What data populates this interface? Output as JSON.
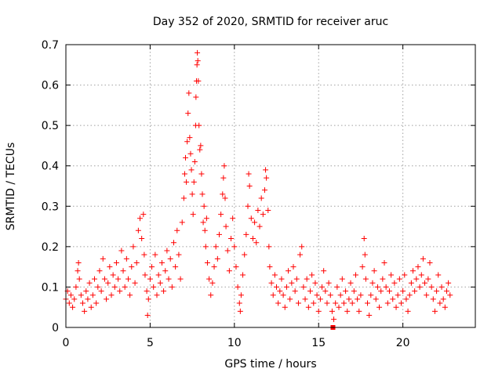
{
  "chart_data": {
    "type": "scatter",
    "title": "Day 352 of 2020, SRMTID for receiver aruc",
    "xlabel": "GPS time / hours",
    "ylabel": "SRMTID / TECUs",
    "xlim": [
      0,
      24.3
    ],
    "ylim": [
      0,
      0.7
    ],
    "x_ticks": [
      0,
      5,
      10,
      15,
      20
    ],
    "x_tick_labels": [
      "0",
      "5",
      "10",
      "15",
      "20"
    ],
    "y_ticks": [
      0,
      0.1,
      0.2,
      0.3,
      0.4,
      0.5,
      0.6,
      0.7
    ],
    "y_tick_labels": [
      "0",
      "0.1",
      "0.2",
      "0.3",
      "0.4",
      "0.5",
      "0.6",
      "0.7"
    ],
    "grid": true,
    "marker": "plus",
    "color": "#ff0000",
    "series": [
      {
        "name": "SRMTID",
        "points": [
          [
            0.0,
            0.07
          ],
          [
            0.1,
            0.09
          ],
          [
            0.2,
            0.06
          ],
          [
            0.3,
            0.08
          ],
          [
            0.4,
            0.05
          ],
          [
            0.5,
            0.07
          ],
          [
            0.6,
            0.1
          ],
          [
            0.7,
            0.14
          ],
          [
            0.75,
            0.16
          ],
          [
            0.8,
            0.12
          ],
          [
            0.9,
            0.08
          ],
          [
            1.0,
            0.06
          ],
          [
            1.1,
            0.04
          ],
          [
            1.2,
            0.09
          ],
          [
            1.3,
            0.07
          ],
          [
            1.4,
            0.11
          ],
          [
            1.5,
            0.05
          ],
          [
            1.6,
            0.08
          ],
          [
            1.7,
            0.12
          ],
          [
            1.8,
            0.06
          ],
          [
            1.9,
            0.1
          ],
          [
            2.0,
            0.14
          ],
          [
            2.1,
            0.09
          ],
          [
            2.2,
            0.17
          ],
          [
            2.3,
            0.12
          ],
          [
            2.4,
            0.07
          ],
          [
            2.5,
            0.11
          ],
          [
            2.6,
            0.15
          ],
          [
            2.7,
            0.08
          ],
          [
            2.8,
            0.13
          ],
          [
            2.9,
            0.1
          ],
          [
            3.0,
            0.16
          ],
          [
            3.1,
            0.12
          ],
          [
            3.2,
            0.09
          ],
          [
            3.3,
            0.19
          ],
          [
            3.4,
            0.14
          ],
          [
            3.5,
            0.1
          ],
          [
            3.6,
            0.17
          ],
          [
            3.7,
            0.12
          ],
          [
            3.8,
            0.08
          ],
          [
            3.9,
            0.15
          ],
          [
            4.0,
            0.2
          ],
          [
            4.1,
            0.11
          ],
          [
            4.2,
            0.16
          ],
          [
            4.3,
            0.24
          ],
          [
            4.4,
            0.27
          ],
          [
            4.5,
            0.22
          ],
          [
            4.6,
            0.28
          ],
          [
            4.65,
            0.18
          ],
          [
            4.7,
            0.13
          ],
          [
            4.8,
            0.09
          ],
          [
            4.85,
            0.03
          ],
          [
            4.9,
            0.07
          ],
          [
            5.0,
            0.12
          ],
          [
            5.1,
            0.15
          ],
          [
            5.2,
            0.1
          ],
          [
            5.3,
            0.18
          ],
          [
            5.4,
            0.08
          ],
          [
            5.5,
            0.13
          ],
          [
            5.6,
            0.11
          ],
          [
            5.7,
            0.16
          ],
          [
            5.8,
            0.09
          ],
          [
            5.9,
            0.14
          ],
          [
            6.0,
            0.19
          ],
          [
            6.1,
            0.12
          ],
          [
            6.2,
            0.17
          ],
          [
            6.3,
            0.1
          ],
          [
            6.4,
            0.21
          ],
          [
            6.5,
            0.15
          ],
          [
            6.6,
            0.24
          ],
          [
            6.7,
            0.18
          ],
          [
            6.8,
            0.12
          ],
          [
            6.9,
            0.26
          ],
          [
            7.0,
            0.32
          ],
          [
            7.05,
            0.38
          ],
          [
            7.1,
            0.42
          ],
          [
            7.15,
            0.36
          ],
          [
            7.2,
            0.46
          ],
          [
            7.25,
            0.53
          ],
          [
            7.3,
            0.58
          ],
          [
            7.35,
            0.47
          ],
          [
            7.4,
            0.43
          ],
          [
            7.45,
            0.39
          ],
          [
            7.5,
            0.33
          ],
          [
            7.55,
            0.28
          ],
          [
            7.6,
            0.36
          ],
          [
            7.65,
            0.41
          ],
          [
            7.7,
            0.5
          ],
          [
            7.72,
            0.57
          ],
          [
            7.75,
            0.61
          ],
          [
            7.78,
            0.65
          ],
          [
            7.8,
            0.68
          ],
          [
            7.83,
            0.66
          ],
          [
            7.86,
            0.61
          ],
          [
            7.9,
            0.5
          ],
          [
            7.95,
            0.44
          ],
          [
            8.0,
            0.45
          ],
          [
            8.05,
            0.38
          ],
          [
            8.1,
            0.33
          ],
          [
            8.15,
            0.26
          ],
          [
            8.2,
            0.3
          ],
          [
            8.25,
            0.24
          ],
          [
            8.3,
            0.2
          ],
          [
            8.35,
            0.27
          ],
          [
            8.4,
            0.16
          ],
          [
            8.5,
            0.12
          ],
          [
            8.6,
            0.08
          ],
          [
            8.7,
            0.11
          ],
          [
            8.8,
            0.15
          ],
          [
            8.9,
            0.2
          ],
          [
            9.0,
            0.17
          ],
          [
            9.1,
            0.23
          ],
          [
            9.2,
            0.28
          ],
          [
            9.3,
            0.33
          ],
          [
            9.35,
            0.37
          ],
          [
            9.4,
            0.4
          ],
          [
            9.45,
            0.32
          ],
          [
            9.5,
            0.25
          ],
          [
            9.6,
            0.19
          ],
          [
            9.7,
            0.14
          ],
          [
            9.8,
            0.22
          ],
          [
            9.9,
            0.27
          ],
          [
            10.0,
            0.2
          ],
          [
            10.1,
            0.15
          ],
          [
            10.2,
            0.1
          ],
          [
            10.3,
            0.06
          ],
          [
            10.35,
            0.04
          ],
          [
            10.4,
            0.08
          ],
          [
            10.5,
            0.13
          ],
          [
            10.6,
            0.18
          ],
          [
            10.7,
            0.23
          ],
          [
            10.8,
            0.3
          ],
          [
            10.85,
            0.38
          ],
          [
            10.9,
            0.35
          ],
          [
            11.0,
            0.27
          ],
          [
            11.1,
            0.22
          ],
          [
            11.2,
            0.26
          ],
          [
            11.3,
            0.21
          ],
          [
            11.4,
            0.29
          ],
          [
            11.5,
            0.25
          ],
          [
            11.6,
            0.32
          ],
          [
            11.7,
            0.28
          ],
          [
            11.8,
            0.34
          ],
          [
            11.85,
            0.39
          ],
          [
            11.9,
            0.37
          ],
          [
            12.0,
            0.29
          ],
          [
            12.05,
            0.2
          ],
          [
            12.1,
            0.15
          ],
          [
            12.2,
            0.11
          ],
          [
            12.3,
            0.08
          ],
          [
            12.4,
            0.13
          ],
          [
            12.5,
            0.1
          ],
          [
            12.6,
            0.06
          ],
          [
            12.7,
            0.09
          ],
          [
            12.8,
            0.12
          ],
          [
            12.9,
            0.08
          ],
          [
            13.0,
            0.05
          ],
          [
            13.1,
            0.1
          ],
          [
            13.2,
            0.14
          ],
          [
            13.3,
            0.07
          ],
          [
            13.4,
            0.11
          ],
          [
            13.5,
            0.15
          ],
          [
            13.6,
            0.09
          ],
          [
            13.7,
            0.12
          ],
          [
            13.8,
            0.06
          ],
          [
            13.9,
            0.18
          ],
          [
            14.0,
            0.2
          ],
          [
            14.1,
            0.1
          ],
          [
            14.2,
            0.07
          ],
          [
            14.3,
            0.12
          ],
          [
            14.4,
            0.05
          ],
          [
            14.5,
            0.09
          ],
          [
            14.6,
            0.13
          ],
          [
            14.7,
            0.06
          ],
          [
            14.8,
            0.11
          ],
          [
            14.9,
            0.08
          ],
          [
            15.0,
            0.04
          ],
          [
            15.1,
            0.07
          ],
          [
            15.2,
            0.1
          ],
          [
            15.3,
            0.14
          ],
          [
            15.4,
            0.09
          ],
          [
            15.5,
            0.06
          ],
          [
            15.6,
            0.11
          ],
          [
            15.7,
            0.08
          ],
          [
            15.8,
            0.04
          ],
          [
            15.9,
            0.02
          ],
          [
            16.0,
            0.06
          ],
          [
            16.1,
            0.1
          ],
          [
            16.2,
            0.05
          ],
          [
            16.3,
            0.08
          ],
          [
            16.4,
            0.12
          ],
          [
            16.5,
            0.06
          ],
          [
            16.6,
            0.09
          ],
          [
            16.7,
            0.04
          ],
          [
            16.8,
            0.07
          ],
          [
            16.9,
            0.11
          ],
          [
            17.0,
            0.06
          ],
          [
            17.1,
            0.09
          ],
          [
            17.2,
            0.13
          ],
          [
            17.3,
            0.07
          ],
          [
            17.4,
            0.04
          ],
          [
            17.5,
            0.08
          ],
          [
            17.6,
            0.15
          ],
          [
            17.7,
            0.22
          ],
          [
            17.75,
            0.18
          ],
          [
            17.8,
            0.12
          ],
          [
            17.9,
            0.06
          ],
          [
            18.0,
            0.03
          ],
          [
            18.1,
            0.08
          ],
          [
            18.2,
            0.11
          ],
          [
            18.3,
            0.14
          ],
          [
            18.4,
            0.07
          ],
          [
            18.5,
            0.1
          ],
          [
            18.6,
            0.05
          ],
          [
            18.7,
            0.09
          ],
          [
            18.8,
            0.12
          ],
          [
            18.9,
            0.16
          ],
          [
            19.0,
            0.1
          ],
          [
            19.1,
            0.06
          ],
          [
            19.2,
            0.09
          ],
          [
            19.3,
            0.13
          ],
          [
            19.4,
            0.07
          ],
          [
            19.5,
            0.11
          ],
          [
            19.6,
            0.05
          ],
          [
            19.7,
            0.08
          ],
          [
            19.8,
            0.12
          ],
          [
            19.9,
            0.06
          ],
          [
            20.0,
            0.09
          ],
          [
            20.1,
            0.13
          ],
          [
            20.2,
            0.07
          ],
          [
            20.3,
            0.04
          ],
          [
            20.4,
            0.08
          ],
          [
            20.5,
            0.11
          ],
          [
            20.6,
            0.14
          ],
          [
            20.7,
            0.09
          ],
          [
            20.8,
            0.12
          ],
          [
            20.9,
            0.15
          ],
          [
            21.0,
            0.1
          ],
          [
            21.1,
            0.13
          ],
          [
            21.2,
            0.17
          ],
          [
            21.3,
            0.11
          ],
          [
            21.4,
            0.08
          ],
          [
            21.5,
            0.12
          ],
          [
            21.6,
            0.16
          ],
          [
            21.7,
            0.1
          ],
          [
            21.8,
            0.07
          ],
          [
            21.9,
            0.04
          ],
          [
            22.0,
            0.09
          ],
          [
            22.1,
            0.13
          ],
          [
            22.2,
            0.06
          ],
          [
            22.3,
            0.1
          ],
          [
            22.4,
            0.07
          ],
          [
            22.5,
            0.05
          ],
          [
            22.6,
            0.09
          ],
          [
            22.7,
            0.11
          ],
          [
            22.8,
            0.08
          ]
        ]
      }
    ],
    "highlight_point": [
      15.85,
      0.0
    ]
  }
}
